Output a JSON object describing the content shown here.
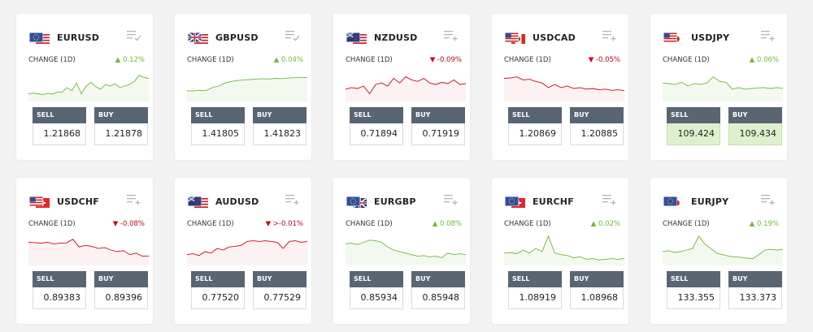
{
  "labels": {
    "change": "CHANGE (1D)",
    "sell": "SELL",
    "buy": "BUY"
  },
  "colors": {
    "up": "#6fb83a",
    "down": "#d0021b",
    "button_header": "#596573",
    "highlight": "#dff0cf"
  },
  "cards": [
    {
      "pair": "EURUSD",
      "flags": [
        "eu",
        "us"
      ],
      "change": "▲ 0.12%",
      "direction": "up",
      "sell": "1.21868",
      "buy": "1.21878",
      "watch_icon": "watchlist-added-icon",
      "spark": [
        0.25,
        0.27,
        0.25,
        0.22,
        0.26,
        0.24,
        0.3,
        0.3,
        0.45,
        0.35,
        0.6,
        0.25,
        0.5,
        0.62,
        0.48,
        0.4,
        0.55,
        0.5,
        0.58,
        0.45,
        0.5,
        0.55,
        0.65,
        0.85,
        0.78,
        0.75
      ]
    },
    {
      "pair": "GBPUSD",
      "flags": [
        "gb",
        "us"
      ],
      "change": "▲ 0.04%",
      "direction": "up",
      "sell": "1.41805",
      "buy": "1.41823",
      "watch_icon": "watchlist-added-icon",
      "spark": [
        0.35,
        0.34,
        0.36,
        0.35,
        0.45,
        0.5,
        0.6,
        0.65,
        0.68,
        0.7,
        0.71,
        0.73,
        0.74,
        0.73,
        0.75,
        0.74,
        0.76,
        0.77,
        0.78,
        0.78
      ]
    },
    {
      "pair": "NZDUSD",
      "flags": [
        "nz",
        "us"
      ],
      "change": "▼ -0.09%",
      "direction": "down",
      "sell": "0.71894",
      "buy": "0.71919",
      "watch_icon": "watchlist-add-icon",
      "spark": [
        0.4,
        0.45,
        0.42,
        0.5,
        0.25,
        0.55,
        0.6,
        0.5,
        0.75,
        0.6,
        0.8,
        0.7,
        0.65,
        0.75,
        0.6,
        0.55,
        0.62,
        0.58,
        0.7,
        0.55,
        0.58
      ]
    },
    {
      "pair": "USDCAD",
      "flags": [
        "us",
        "ca"
      ],
      "change": "▼ -0.05%",
      "direction": "down",
      "sell": "1.20869",
      "buy": "1.20885",
      "watch_icon": "watchlist-add-icon",
      "spark": [
        0.75,
        0.76,
        0.8,
        0.7,
        0.72,
        0.65,
        0.6,
        0.45,
        0.55,
        0.45,
        0.5,
        0.42,
        0.45,
        0.4,
        0.42,
        0.38,
        0.4,
        0.36,
        0.38,
        0.35
      ]
    },
    {
      "pair": "USDJPY",
      "flags": [
        "us",
        "jp"
      ],
      "change": "▲ 0.06%",
      "direction": "up",
      "sell": "109.424",
      "buy": "109.434",
      "watch_icon": "watchlist-add-icon",
      "highlight": true,
      "spark": [
        0.6,
        0.58,
        0.55,
        0.62,
        0.5,
        0.58,
        0.55,
        0.6,
        0.8,
        0.65,
        0.62,
        0.4,
        0.45,
        0.4,
        0.42,
        0.44,
        0.45,
        0.42,
        0.45,
        0.43
      ]
    },
    {
      "pair": "USDCHF",
      "flags": [
        "us",
        "ch"
      ],
      "change": "▼ -0.08%",
      "direction": "down",
      "sell": "0.89383",
      "buy": "0.89396",
      "watch_icon": "watchlist-add-icon",
      "spark": [
        0.75,
        0.74,
        0.72,
        0.75,
        0.7,
        0.72,
        0.73,
        0.85,
        0.6,
        0.65,
        0.62,
        0.55,
        0.58,
        0.5,
        0.45,
        0.48,
        0.35,
        0.4,
        0.3,
        0.3
      ]
    },
    {
      "pair": "AUDUSD",
      "flags": [
        "au",
        "us"
      ],
      "change": "▼ >-0.01%",
      "direction": "down",
      "sell": "0.77520",
      "buy": "0.77529",
      "watch_icon": "watchlist-add-icon",
      "spark": [
        0.35,
        0.38,
        0.32,
        0.45,
        0.4,
        0.55,
        0.5,
        0.6,
        0.62,
        0.65,
        0.78,
        0.8,
        0.78,
        0.8,
        0.78,
        0.75,
        0.55,
        0.78,
        0.8,
        0.75,
        0.78
      ]
    },
    {
      "pair": "EURGBP",
      "flags": [
        "eu",
        "gb"
      ],
      "change": "▲ 0.08%",
      "direction": "up",
      "sell": "0.85934",
      "buy": "0.85948",
      "watch_icon": "watchlist-add-icon",
      "spark": [
        0.7,
        0.72,
        0.68,
        0.75,
        0.82,
        0.8,
        0.75,
        0.6,
        0.5,
        0.45,
        0.4,
        0.35,
        0.3,
        0.32,
        0.28,
        0.3,
        0.25,
        0.4,
        0.35,
        0.38,
        0.35
      ]
    },
    {
      "pair": "EURCHF",
      "flags": [
        "eu",
        "ch"
      ],
      "change": "▲ 0.02%",
      "direction": "up",
      "sell": "1.08919",
      "buy": "1.08968",
      "watch_icon": "watchlist-add-icon",
      "spark": [
        0.4,
        0.42,
        0.38,
        0.5,
        0.4,
        0.55,
        0.45,
        0.95,
        0.4,
        0.35,
        0.32,
        0.25,
        0.28,
        0.2,
        0.22,
        0.18,
        0.2,
        0.22,
        0.2,
        0.22
      ]
    },
    {
      "pair": "EURJPY",
      "flags": [
        "eu",
        "jp"
      ],
      "change": "▲ 0.19%",
      "direction": "up",
      "sell": "133.355",
      "buy": "133.373",
      "watch_icon": "watchlist-add-icon",
      "spark": [
        0.45,
        0.48,
        0.42,
        0.45,
        0.5,
        0.55,
        0.95,
        0.7,
        0.55,
        0.4,
        0.35,
        0.3,
        0.28,
        0.26,
        0.24,
        0.22,
        0.35,
        0.5,
        0.52,
        0.5,
        0.52
      ]
    }
  ]
}
